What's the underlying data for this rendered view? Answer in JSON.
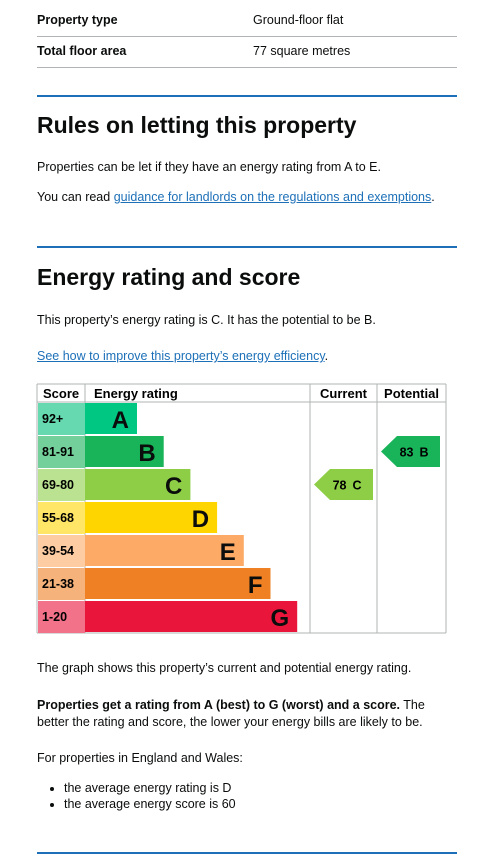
{
  "summary": {
    "rows": [
      [
        "Property type",
        "Ground-floor flat"
      ],
      [
        "Total floor area",
        "77 square metres"
      ]
    ]
  },
  "letting": {
    "title": "Rules on letting this property",
    "text": "Properties can be let if they have an energy rating from A to E.",
    "guidance_before": "You can read ",
    "guidance_link": "guidance for landlords on the regulations and exemptions",
    "guidance_after": "."
  },
  "rating": {
    "title": "Energy rating and score",
    "text": "This property’s energy rating is C. It has the potential to be B.",
    "improve_link": "See how to improve this property’s energy efficiency",
    "improve_after": "."
  },
  "graph": {
    "headers": [
      "Score",
      "Energy rating",
      "Current",
      "Potential"
    ],
    "bands": [
      {
        "score": "92+",
        "letter": "A",
        "color": "#00c781",
        "tint": "#66d9b0"
      },
      {
        "score": "81-91",
        "letter": "B",
        "color": "#19b459",
        "tint": "#74d09b"
      },
      {
        "score": "69-80",
        "letter": "C",
        "color": "#8dce46",
        "tint": "#bbe290"
      },
      {
        "score": "55-68",
        "letter": "D",
        "color": "#ffd500",
        "tint": "#ffe666"
      },
      {
        "score": "39-54",
        "letter": "E",
        "color": "#fcaa65",
        "tint": "#fdcca3"
      },
      {
        "score": "21-38",
        "letter": "F",
        "color": "#ef8023",
        "tint": "#f5b37b"
      },
      {
        "score": "1-20",
        "letter": "G",
        "color": "#e9153b",
        "tint": "#f27389"
      }
    ],
    "current": {
      "score": "78",
      "letter": "C"
    },
    "potential": {
      "score": "83",
      "letter": "B"
    }
  },
  "notes": {
    "graph_text": "The graph shows this property’s current and potential energy rating.",
    "bold": "Properties get a rating from A (best) to G (worst) and a score.",
    "rest": " The better the rating and score, the lower your energy bills are likely to be.",
    "regional": "For properties in England and Wales:",
    "list": [
      "the average energy rating is D",
      "the average energy score is 60"
    ]
  }
}
